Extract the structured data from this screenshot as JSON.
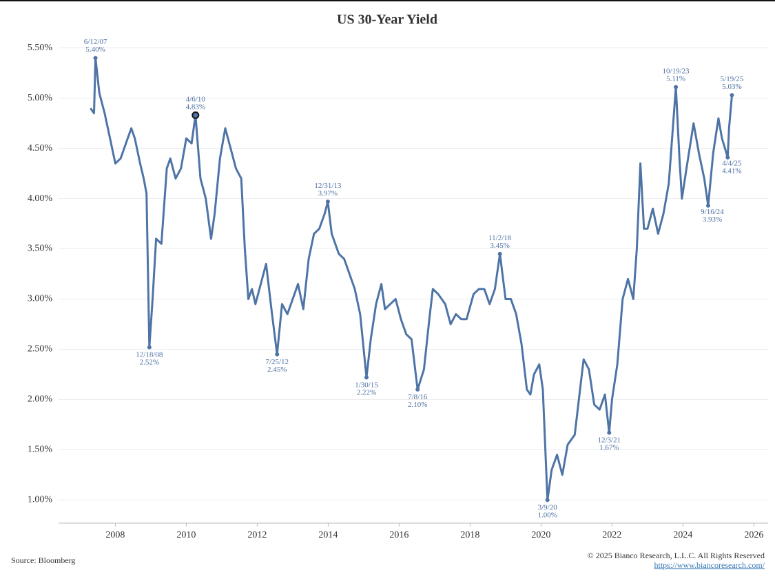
{
  "chart_data": {
    "type": "line",
    "title": "US 30-Year Yield",
    "source": "Source: Bloomberg",
    "copyright": "© 2025 Bianco Research, L.L.C. All Rights Reserved",
    "url": "https://www.biancoresearch.com/",
    "xlim": [
      2006.4,
      2026.4
    ],
    "xticks": [
      2008,
      2010,
      2012,
      2014,
      2016,
      2018,
      2020,
      2022,
      2024,
      2026
    ],
    "ylim": [
      0.77,
      5.6
    ],
    "yticks": [
      {
        "value": 1.0,
        "label": "1.00%"
      },
      {
        "value": 1.5,
        "label": "1.50%"
      },
      {
        "value": 2.0,
        "label": "2.00%"
      },
      {
        "value": 2.5,
        "label": "2.50%"
      },
      {
        "value": 3.0,
        "label": "3.00%"
      },
      {
        "value": 3.5,
        "label": "3.50%"
      },
      {
        "value": 4.0,
        "label": "4.00%"
      },
      {
        "value": 4.5,
        "label": "4.50%"
      },
      {
        "value": 5.0,
        "label": "5.00%"
      },
      {
        "value": 5.5,
        "label": "5.50%"
      }
    ],
    "grid": true,
    "series": [
      {
        "name": "US 30-Year Yield",
        "color": "#4e74a6",
        "x": [
          2007.3,
          2007.4,
          2007.44,
          2007.55,
          2007.7,
          2007.85,
          2008.0,
          2008.15,
          2008.3,
          2008.45,
          2008.55,
          2008.7,
          2008.8,
          2008.88,
          2008.96,
          2009.05,
          2009.15,
          2009.3,
          2009.45,
          2009.55,
          2009.7,
          2009.85,
          2010.0,
          2010.15,
          2010.26,
          2010.4,
          2010.55,
          2010.7,
          2010.8,
          2010.95,
          2011.1,
          2011.25,
          2011.4,
          2011.55,
          2011.65,
          2011.75,
          2011.85,
          2011.95,
          2012.1,
          2012.25,
          2012.4,
          2012.56,
          2012.7,
          2012.85,
          2013.0,
          2013.15,
          2013.3,
          2013.45,
          2013.6,
          2013.75,
          2013.9,
          2013.99,
          2014.1,
          2014.3,
          2014.45,
          2014.6,
          2014.75,
          2014.9,
          2015.08,
          2015.2,
          2015.35,
          2015.5,
          2015.6,
          2015.75,
          2015.9,
          2016.05,
          2016.2,
          2016.35,
          2016.52,
          2016.7,
          2016.85,
          2016.95,
          2017.1,
          2017.3,
          2017.45,
          2017.6,
          2017.75,
          2017.9,
          2018.1,
          2018.25,
          2018.4,
          2018.55,
          2018.7,
          2018.84,
          2019.0,
          2019.15,
          2019.3,
          2019.45,
          2019.6,
          2019.7,
          2019.8,
          2019.95,
          2020.05,
          2020.18,
          2020.3,
          2020.45,
          2020.6,
          2020.75,
          2020.95,
          2021.1,
          2021.2,
          2021.35,
          2021.5,
          2021.65,
          2021.8,
          2021.92,
          2022.0,
          2022.15,
          2022.3,
          2022.45,
          2022.6,
          2022.7,
          2022.8,
          2022.9,
          2023.0,
          2023.15,
          2023.3,
          2023.45,
          2023.6,
          2023.8,
          2023.9,
          2023.97,
          2024.1,
          2024.3,
          2024.45,
          2024.6,
          2024.71,
          2024.85,
          2025.0,
          2025.1,
          2025.26,
          2025.3,
          2025.38
        ],
        "values": [
          4.9,
          4.85,
          5.4,
          5.05,
          4.85,
          4.6,
          4.35,
          4.4,
          4.55,
          4.7,
          4.6,
          4.35,
          4.2,
          4.05,
          2.52,
          3.0,
          3.6,
          3.55,
          4.3,
          4.4,
          4.2,
          4.3,
          4.6,
          4.55,
          4.83,
          4.2,
          4.0,
          3.6,
          3.85,
          4.4,
          4.7,
          4.5,
          4.3,
          4.2,
          3.5,
          3.0,
          3.1,
          2.95,
          3.15,
          3.35,
          2.9,
          2.45,
          2.95,
          2.85,
          3.0,
          3.15,
          2.9,
          3.4,
          3.65,
          3.7,
          3.85,
          3.97,
          3.65,
          3.45,
          3.4,
          3.25,
          3.1,
          2.85,
          2.22,
          2.6,
          2.95,
          3.15,
          2.9,
          2.95,
          3.0,
          2.8,
          2.65,
          2.6,
          2.1,
          2.3,
          2.8,
          3.1,
          3.05,
          2.95,
          2.75,
          2.85,
          2.8,
          2.8,
          3.05,
          3.1,
          3.1,
          2.95,
          3.1,
          3.45,
          3.0,
          3.0,
          2.85,
          2.55,
          2.1,
          2.05,
          2.25,
          2.35,
          2.1,
          1.0,
          1.3,
          1.45,
          1.25,
          1.55,
          1.65,
          2.1,
          2.4,
          2.3,
          1.95,
          1.9,
          2.05,
          1.67,
          2.0,
          2.35,
          3.0,
          3.2,
          3.0,
          3.5,
          4.35,
          3.7,
          3.7,
          3.9,
          3.65,
          3.85,
          4.15,
          5.11,
          4.4,
          4.0,
          4.3,
          4.75,
          4.45,
          4.2,
          3.93,
          4.45,
          4.8,
          4.6,
          4.41,
          4.7,
          5.03
        ]
      }
    ],
    "annotations": [
      {
        "date": "6/12/07",
        "x": 2007.44,
        "value": 5.4,
        "value_label": "5.40%"
      },
      {
        "date": "12/18/08",
        "x": 2008.96,
        "value": 2.52,
        "value_label": "2.52%"
      },
      {
        "date": "4/6/10",
        "x": 2010.26,
        "value": 4.83,
        "value_label": "4.83%"
      },
      {
        "date": "7/25/12",
        "x": 2012.56,
        "value": 2.45,
        "value_label": "2.45%"
      },
      {
        "date": "12/31/13",
        "x": 2013.99,
        "value": 3.97,
        "value_label": "3.97%"
      },
      {
        "date": "1/30/15",
        "x": 2015.08,
        "value": 2.22,
        "value_label": "2.22%"
      },
      {
        "date": "7/8/16",
        "x": 2016.52,
        "value": 2.1,
        "value_label": "2.10%"
      },
      {
        "date": "11/2/18",
        "x": 2018.84,
        "value": 3.45,
        "value_label": "3.45%"
      },
      {
        "date": "3/9/20",
        "x": 2020.18,
        "value": 1.0,
        "value_label": "1.00%"
      },
      {
        "date": "12/3/21",
        "x": 2021.92,
        "value": 1.67,
        "value_label": "1.67%"
      },
      {
        "date": "10/19/23",
        "x": 2023.8,
        "value": 5.11,
        "value_label": "5.11%"
      },
      {
        "date": "9/16/24",
        "x": 2024.71,
        "value": 3.93,
        "value_label": "3.93%"
      },
      {
        "date": "4/4/25",
        "x": 2025.26,
        "value": 4.41,
        "value_label": "4.41%"
      },
      {
        "date": "5/19/25",
        "x": 2025.38,
        "value": 5.03,
        "value_label": "5.03%"
      }
    ]
  }
}
